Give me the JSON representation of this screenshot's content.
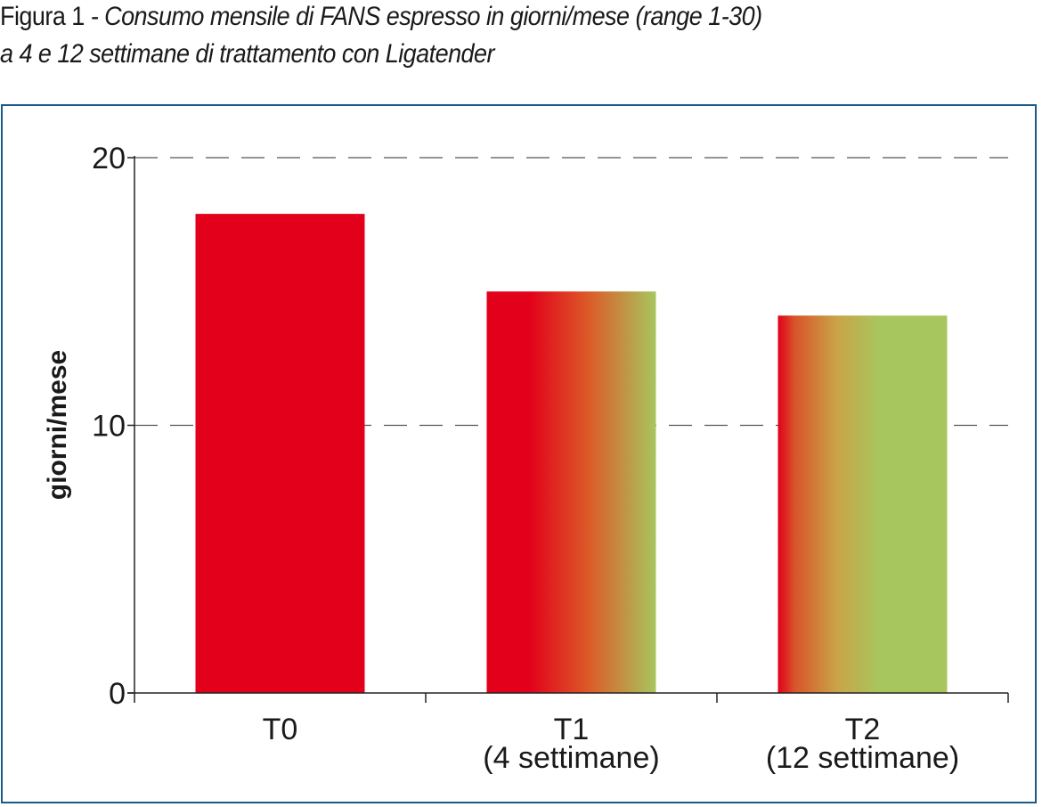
{
  "caption": {
    "figure_label": "Figura 1",
    "line1_rest": " - Consumo mensile di FANS espresso in giorni/mese (range 1-30)",
    "line2": "a 4 e 12 settimane di trattamento con Ligatender"
  },
  "colors": {
    "frame": "#1b5a86",
    "bar_red": "#e2001a",
    "bar_green": "#a8c65e",
    "grid": "#555555"
  },
  "chart_data": {
    "type": "bar",
    "categories": [
      {
        "label": "T0",
        "sublabel": ""
      },
      {
        "label": "T1",
        "sublabel": "(4 settimane)"
      },
      {
        "label": "T2",
        "sublabel": "(12 settimane)"
      }
    ],
    "values": [
      17.9,
      15.0,
      14.1
    ],
    "bar_styles": [
      "solid-red",
      "gradient-red-to-green",
      "gradient-red-to-green-strong"
    ],
    "ylabel": "giorni/mese",
    "xlabel": "",
    "ylim": [
      0,
      20
    ],
    "yticks": [
      0,
      10,
      20
    ],
    "grid": "dashed horizontal at 10 and 20",
    "legend": "none"
  }
}
